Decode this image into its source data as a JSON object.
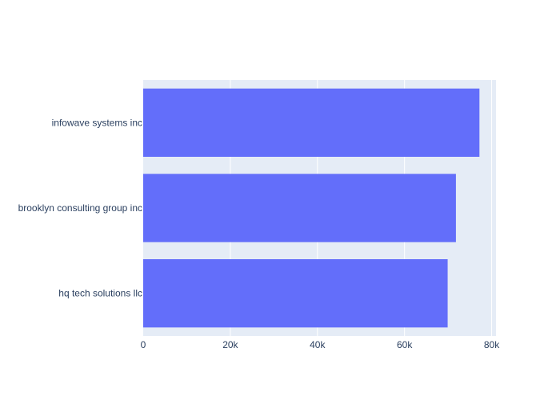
{
  "chart_data": {
    "type": "bar",
    "orientation": "horizontal",
    "categories": [
      "infowave systems inc",
      "brooklyn consulting group inc",
      "hq tech solutions llc"
    ],
    "values": [
      77200,
      71800,
      69900
    ],
    "xlim": [
      0,
      81000
    ],
    "xticks": [
      0,
      20000,
      40000,
      60000,
      80000
    ],
    "xtick_labels": [
      "0",
      "20k",
      "40k",
      "60k",
      "80k"
    ],
    "title": "",
    "xlabel": "",
    "ylabel": "",
    "grid": true,
    "legend": "none",
    "colors": {
      "bar": "#636efa",
      "plot_bg": "#e5ecf6",
      "grid": "#ffffff",
      "text": "#2a3f5f"
    }
  }
}
